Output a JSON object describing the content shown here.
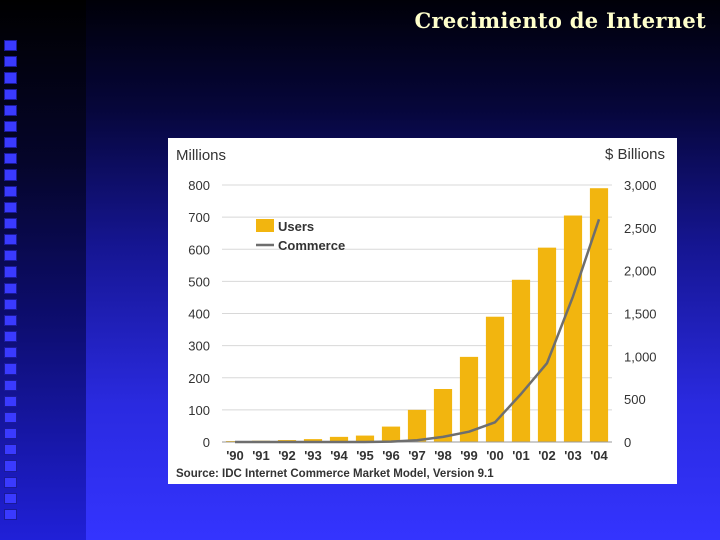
{
  "slide": {
    "title": "Crecimiento de Internet"
  },
  "colors": {
    "bar": "#f2b50f",
    "line": "#6e6e6e",
    "grid": "#d8d8d8",
    "text": "#333333"
  },
  "chart_data": {
    "type": "bar",
    "title": "",
    "left_axis_title": "Millions",
    "right_axis_title": "$ Billions",
    "categories": [
      "'90",
      "'91",
      "'92",
      "'93",
      "'94",
      "'95",
      "'96",
      "'97",
      "'98",
      "'99",
      "'00",
      "'01",
      "'02",
      "'03",
      "'04"
    ],
    "ylim": [
      0,
      800
    ],
    "yticks": [
      "800",
      "700",
      "600",
      "500",
      "400",
      "300",
      "200",
      "100",
      "0"
    ],
    "y2lim": [
      0,
      3000
    ],
    "y2ticks": [
      "3,000",
      "2,500",
      "2,000",
      "1,500",
      "1,000",
      "500",
      "0"
    ],
    "series": [
      {
        "name": "Users",
        "type": "bar",
        "axis": "left",
        "values": [
          3,
          4,
          6,
          9,
          16,
          20,
          48,
          100,
          165,
          265,
          390,
          505,
          605,
          705,
          790
        ]
      },
      {
        "name": "Commerce",
        "type": "line",
        "axis": "right",
        "values": [
          0,
          0,
          0,
          0,
          0,
          0,
          5,
          20,
          60,
          120,
          230,
          560,
          920,
          1700,
          2600
        ]
      }
    ],
    "legend": {
      "placement": "top-left",
      "entries": [
        "Users",
        "Commerce"
      ]
    },
    "grid": true,
    "source": "Source: IDC Internet Commerce Market Model, Version 9.1"
  }
}
